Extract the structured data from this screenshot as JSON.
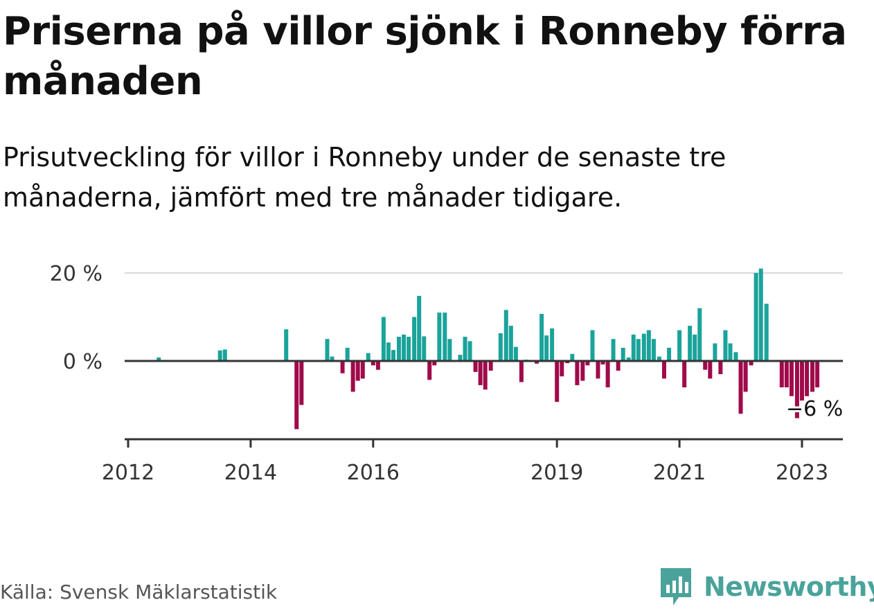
{
  "title": "Priserna på villor sjönk i Ronneby förra månaden",
  "subtitle": "Prisutveckling för villor i Ronneby under de senaste tre månaderna, jämfört med tre månader tidigare.",
  "source": "Källa: Svensk Mäklarstatistik",
  "brand": "Newsworthy",
  "colors": {
    "positive": "#1aa39b",
    "negative": "#a00a4a",
    "axis": "#333333",
    "grid": "#d9d9d9"
  },
  "chart_data": {
    "type": "bar",
    "ylim": [
      -18,
      20
    ],
    "yticks": [
      {
        "value": 20,
        "label": "20 %"
      },
      {
        "value": 0,
        "label": "0 %"
      }
    ],
    "xticks": [
      {
        "x": 2012.0,
        "label": "2012"
      },
      {
        "x": 2014.0,
        "label": "2014"
      },
      {
        "x": 2016.0,
        "label": "2016"
      },
      {
        "x": 2019.0,
        "label": "2019"
      },
      {
        "x": 2021.0,
        "label": "2021"
      },
      {
        "x": 2023.0,
        "label": "2023"
      }
    ],
    "xlim": [
      2012.0,
      2023.67
    ],
    "annotation": {
      "x": 2022.83,
      "label": "−6 %"
    },
    "points": [
      [
        2012.5,
        0.8
      ],
      [
        2013.5,
        2.4
      ],
      [
        2013.58,
        2.6
      ],
      [
        2014.58,
        7.2
      ],
      [
        2014.75,
        -15.5
      ],
      [
        2014.83,
        -10.0
      ],
      [
        2015.25,
        5.0
      ],
      [
        2015.33,
        1.0
      ],
      [
        2015.5,
        -2.8
      ],
      [
        2015.58,
        3.0
      ],
      [
        2015.67,
        -7.0
      ],
      [
        2015.75,
        -4.5
      ],
      [
        2015.83,
        -4.0
      ],
      [
        2015.92,
        1.8
      ],
      [
        2016.0,
        -1.0
      ],
      [
        2016.08,
        -2.0
      ],
      [
        2016.17,
        10.0
      ],
      [
        2016.25,
        4.2
      ],
      [
        2016.33,
        2.5
      ],
      [
        2016.42,
        5.5
      ],
      [
        2016.5,
        6.0
      ],
      [
        2016.58,
        5.5
      ],
      [
        2016.67,
        10.0
      ],
      [
        2016.75,
        14.8
      ],
      [
        2016.83,
        5.6
      ],
      [
        2016.92,
        -4.3
      ],
      [
        2017.0,
        -1.0
      ],
      [
        2017.08,
        11.0
      ],
      [
        2017.17,
        11.0
      ],
      [
        2017.25,
        5.0
      ],
      [
        2017.42,
        1.4
      ],
      [
        2017.5,
        5.5
      ],
      [
        2017.58,
        4.5
      ],
      [
        2017.67,
        -2.5
      ],
      [
        2017.75,
        -5.5
      ],
      [
        2017.83,
        -6.5
      ],
      [
        2017.92,
        -2.2
      ],
      [
        2018.08,
        6.3
      ],
      [
        2018.17,
        11.6
      ],
      [
        2018.25,
        8.0
      ],
      [
        2018.33,
        3.2
      ],
      [
        2018.42,
        -4.8
      ],
      [
        2018.5,
        0.3
      ],
      [
        2018.67,
        -0.6
      ],
      [
        2018.75,
        10.7
      ],
      [
        2018.83,
        5.8
      ],
      [
        2018.92,
        7.4
      ],
      [
        2019.0,
        -9.3
      ],
      [
        2019.08,
        -3.5
      ],
      [
        2019.17,
        -0.5
      ],
      [
        2019.25,
        1.6
      ],
      [
        2019.33,
        -5.5
      ],
      [
        2019.42,
        -4.5
      ],
      [
        2019.5,
        -1.0
      ],
      [
        2019.58,
        7.0
      ],
      [
        2019.67,
        -4.0
      ],
      [
        2019.75,
        -0.8
      ],
      [
        2019.83,
        -6.0
      ],
      [
        2019.92,
        5.0
      ],
      [
        2020.0,
        -2.2
      ],
      [
        2020.08,
        3.0
      ],
      [
        2020.17,
        0.8
      ],
      [
        2020.25,
        6.0
      ],
      [
        2020.33,
        5.0
      ],
      [
        2020.42,
        6.2
      ],
      [
        2020.5,
        7.0
      ],
      [
        2020.58,
        5.0
      ],
      [
        2020.67,
        1.0
      ],
      [
        2020.75,
        -4.0
      ],
      [
        2020.83,
        3.0
      ],
      [
        2021.0,
        7.0
      ],
      [
        2021.08,
        -6.0
      ],
      [
        2021.17,
        8.0
      ],
      [
        2021.25,
        6.0
      ],
      [
        2021.33,
        12.0
      ],
      [
        2021.42,
        -2.0
      ],
      [
        2021.5,
        -4.0
      ],
      [
        2021.58,
        4.0
      ],
      [
        2021.67,
        -3.0
      ],
      [
        2021.75,
        7.0
      ],
      [
        2021.83,
        4.0
      ],
      [
        2021.92,
        2.0
      ],
      [
        2022.0,
        -12.0
      ],
      [
        2022.08,
        -7.0
      ],
      [
        2022.17,
        -1.0
      ],
      [
        2022.25,
        20.0
      ],
      [
        2022.33,
        21.0
      ],
      [
        2022.42,
        13.0
      ],
      [
        2022.67,
        -6.0
      ],
      [
        2022.75,
        -6.0
      ],
      [
        2022.83,
        -8.0
      ],
      [
        2022.92,
        -13.0
      ],
      [
        2023.0,
        -9.0
      ],
      [
        2023.08,
        -8.0
      ],
      [
        2023.17,
        -7.0
      ],
      [
        2023.25,
        -6.0
      ]
    ]
  }
}
